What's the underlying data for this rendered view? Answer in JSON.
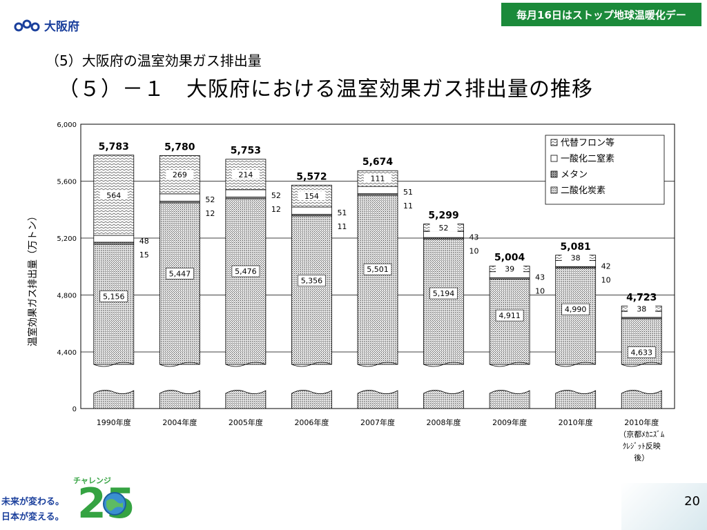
{
  "header": {
    "org_name": "大阪府",
    "banner": "毎月16日はストップ地球温暖化デー"
  },
  "subtitle": "（5）大阪府の温室効果ガス排出量",
  "title": "（５）－１　大阪府における温室効果ガス排出量の推移",
  "footer": {
    "slogan_1": "未来が変わる。",
    "slogan_2": "日本が変える。",
    "challenge": "チャレンジ",
    "challenge_number": "25",
    "page_number": "20"
  },
  "chart_data": {
    "type": "bar",
    "stacked": true,
    "axis_break": true,
    "ylabel": "温室効果ガス排出量（万トン）",
    "yticks": [
      "0",
      "4,400",
      "4,800",
      "5,200",
      "5,600",
      "6,000"
    ],
    "ylim_upper": [
      4200,
      6000
    ],
    "categories": [
      "1990年度",
      "2004年度",
      "2005年度",
      "2006年度",
      "2007年度",
      "2008年度",
      "2009年度",
      "2010年度",
      "2010年度（京都メカニズム クレジット反映後）"
    ],
    "category_label_lines": [
      [
        "1990年度"
      ],
      [
        "2004年度"
      ],
      [
        "2005年度"
      ],
      [
        "2006年度"
      ],
      [
        "2007年度"
      ],
      [
        "2008年度"
      ],
      [
        "2009年度"
      ],
      [
        "2010年度"
      ],
      [
        "2010年度",
        "（京都ﾒｶﾆｽﾞﾑ",
        "ｸﾚｼﾞｯﾄ反映",
        "後）"
      ]
    ],
    "series": [
      {
        "name": "二酸化炭素",
        "values": [
          5156,
          5447,
          5476,
          5356,
          5501,
          5194,
          4911,
          4990,
          4633
        ],
        "labels": [
          "5,156",
          "5,447",
          "5,476",
          "5,356",
          "5,501",
          "5,194",
          "4,911",
          "4,990",
          "4,633"
        ]
      },
      {
        "name": "メタン",
        "values": [
          15,
          12,
          12,
          11,
          11,
          10,
          10,
          10,
          10
        ],
        "labels": [
          "15",
          "12",
          "12",
          "11",
          "11",
          "10",
          "10",
          "10",
          ""
        ]
      },
      {
        "name": "一酸化二窒素",
        "values": [
          48,
          52,
          52,
          51,
          51,
          43,
          43,
          42,
          42
        ],
        "labels": [
          "48",
          "52",
          "52",
          "51",
          "51",
          "43",
          "43",
          "42",
          ""
        ]
      },
      {
        "name": "代替フロン等",
        "values": [
          564,
          269,
          214,
          154,
          111,
          52,
          39,
          38,
          38
        ],
        "labels": [
          "564",
          "269",
          "214",
          "154",
          "111",
          "52",
          "39",
          "38",
          "38"
        ]
      }
    ],
    "totals": [
      "5,783",
      "5,780",
      "5,753",
      "5,572",
      "5,674",
      "5,299",
      "5,004",
      "5,081",
      "4,723"
    ],
    "legend_position": "top-right",
    "legend_order": [
      "代替フロン等",
      "一酸化二窒素",
      "メタン",
      "二酸化炭素"
    ]
  }
}
